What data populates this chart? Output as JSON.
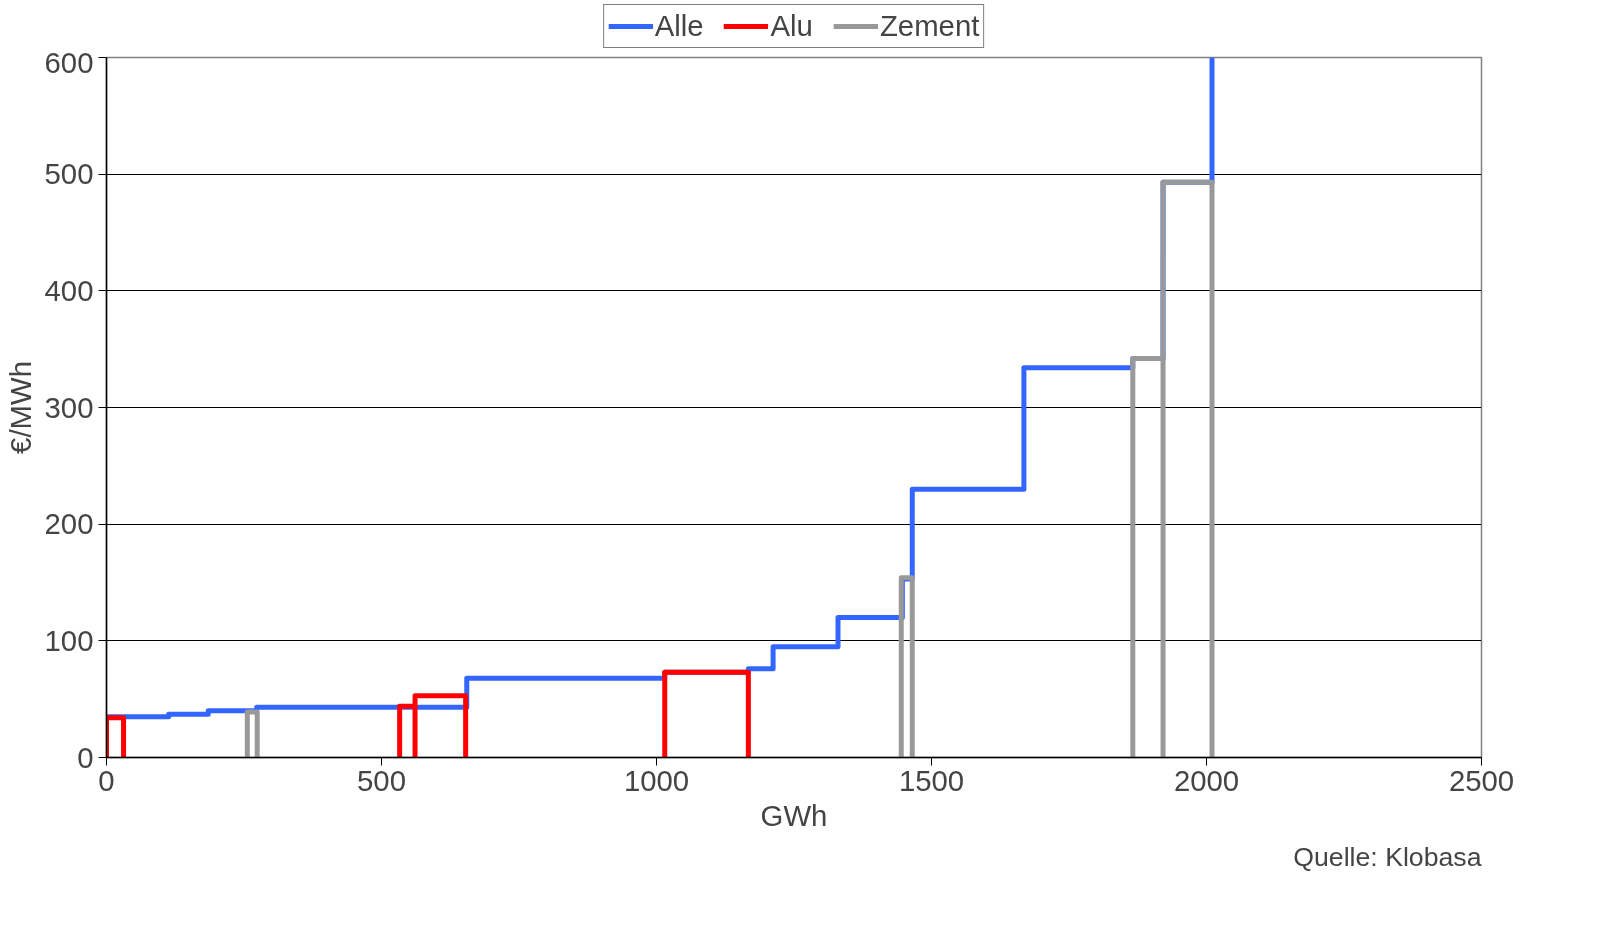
{
  "chart_data": {
    "type": "step",
    "xlabel": "GWh",
    "ylabel": "€/MWh",
    "xlim": [
      0,
      2500
    ],
    "ylim": [
      0,
      600
    ],
    "xticks": [
      0,
      500,
      1000,
      1500,
      2000,
      2500
    ],
    "yticks": [
      0,
      100,
      200,
      300,
      400,
      500,
      600
    ],
    "grid": "y",
    "legend": "top",
    "line_style": "solid",
    "marker": "none",
    "series": [
      {
        "name": "Alle",
        "color": "#3366ff",
        "x": [
          0,
          113,
          185,
          273,
          655,
          1015,
          1167,
          1212,
          1330,
          1447,
          1465,
          1668,
          1866,
          1921,
          2010
        ],
        "values": [
          35,
          37,
          40,
          43,
          68,
          73,
          76,
          95,
          120,
          153,
          230,
          334,
          342,
          493,
          600
        ]
      },
      {
        "name": "Alu",
        "color": "#ff0000",
        "x": [
          0,
          0,
          31,
          null,
          533,
          533,
          561,
          561,
          653,
          null,
          1015,
          1015,
          1167
        ],
        "values": [
          0,
          34,
          0,
          null,
          0,
          44,
          0,
          53,
          0,
          null,
          0,
          73,
          0
        ]
      },
      {
        "name": "Zement",
        "color": "#999999",
        "x": [
          256,
          256,
          274,
          null,
          1445,
          1445,
          1465,
          null,
          1866,
          1866,
          1921,
          1921,
          2010
        ],
        "values": [
          0,
          39,
          0,
          null,
          0,
          154,
          0,
          null,
          0,
          342,
          0,
          493,
          0
        ]
      }
    ],
    "annotations": [
      "Quelle: Klobasa"
    ]
  }
}
